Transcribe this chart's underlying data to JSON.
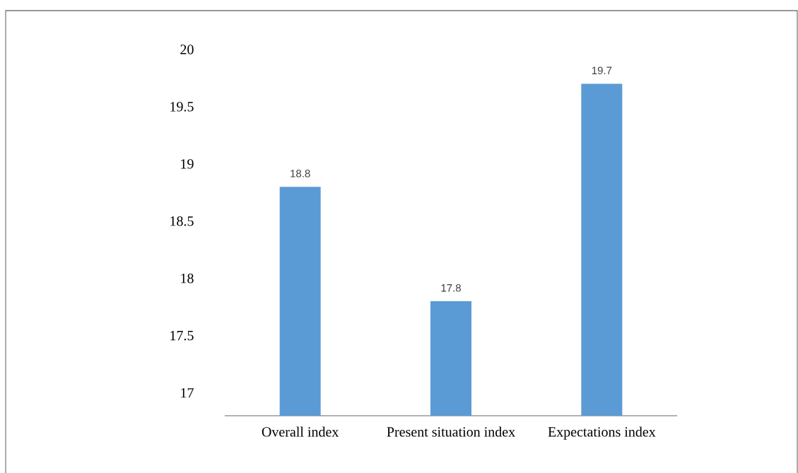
{
  "chart_data": {
    "type": "bar",
    "categories": [
      "Overall index",
      "Present situation index",
      "Expectations index"
    ],
    "values": [
      18.8,
      17.8,
      19.7
    ],
    "color": "#5b9bd5",
    "ylim": [
      16.8,
      20
    ],
    "yticks": [
      17,
      17.5,
      18,
      18.5,
      19,
      19.5,
      20
    ],
    "data_labels": true
  }
}
